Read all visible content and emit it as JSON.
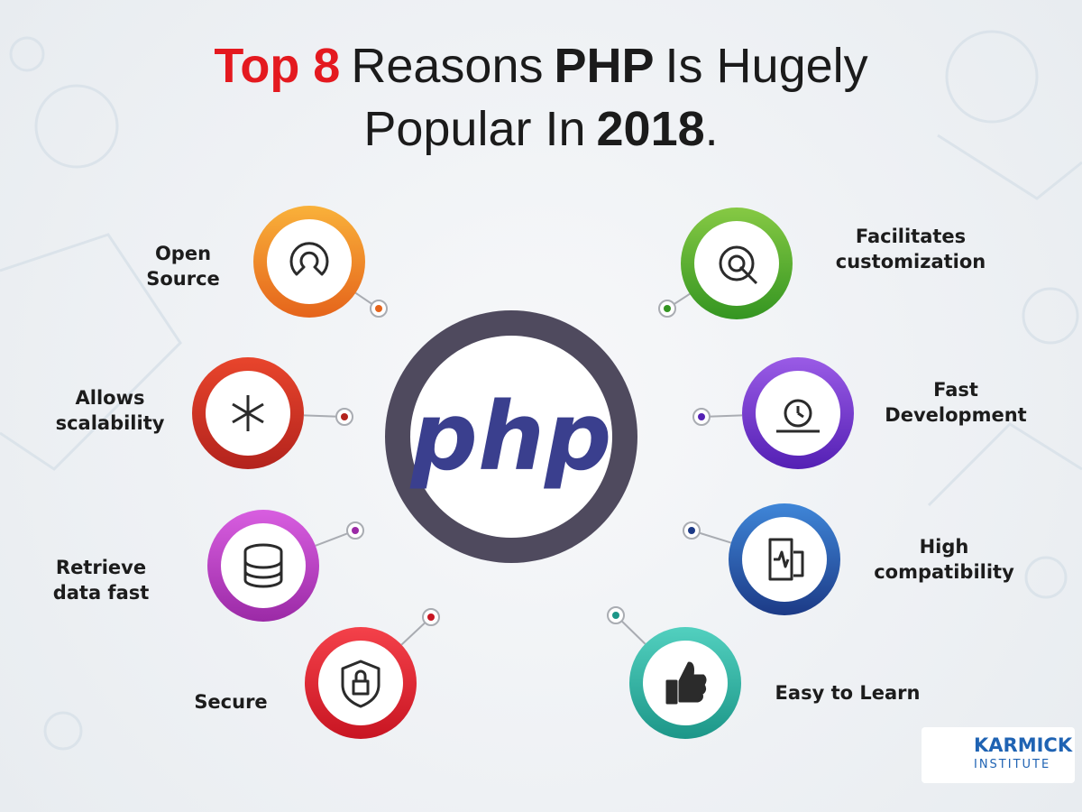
{
  "title": {
    "line1": [
      "Top 8",
      "Reasons",
      "PHP",
      "Is Hugely"
    ],
    "line2": [
      "Popular In",
      "2018",
      "."
    ]
  },
  "center": {
    "label": "php"
  },
  "items": [
    {
      "lines": [
        "Open",
        "Source"
      ]
    },
    {
      "lines": [
        "Allows",
        "scalability"
      ]
    },
    {
      "lines": [
        "Retrieve",
        "data fast"
      ]
    },
    {
      "lines": [
        "Secure"
      ]
    },
    {
      "lines": [
        "Facilitates",
        "customization"
      ]
    },
    {
      "lines": [
        "Fast",
        "Development"
      ]
    },
    {
      "lines": [
        "High",
        "compatibility"
      ]
    },
    {
      "lines": [
        "Easy to Learn"
      ]
    }
  ],
  "logo": {
    "name": "KARMICK",
    "sub": "INSTITUTE"
  }
}
